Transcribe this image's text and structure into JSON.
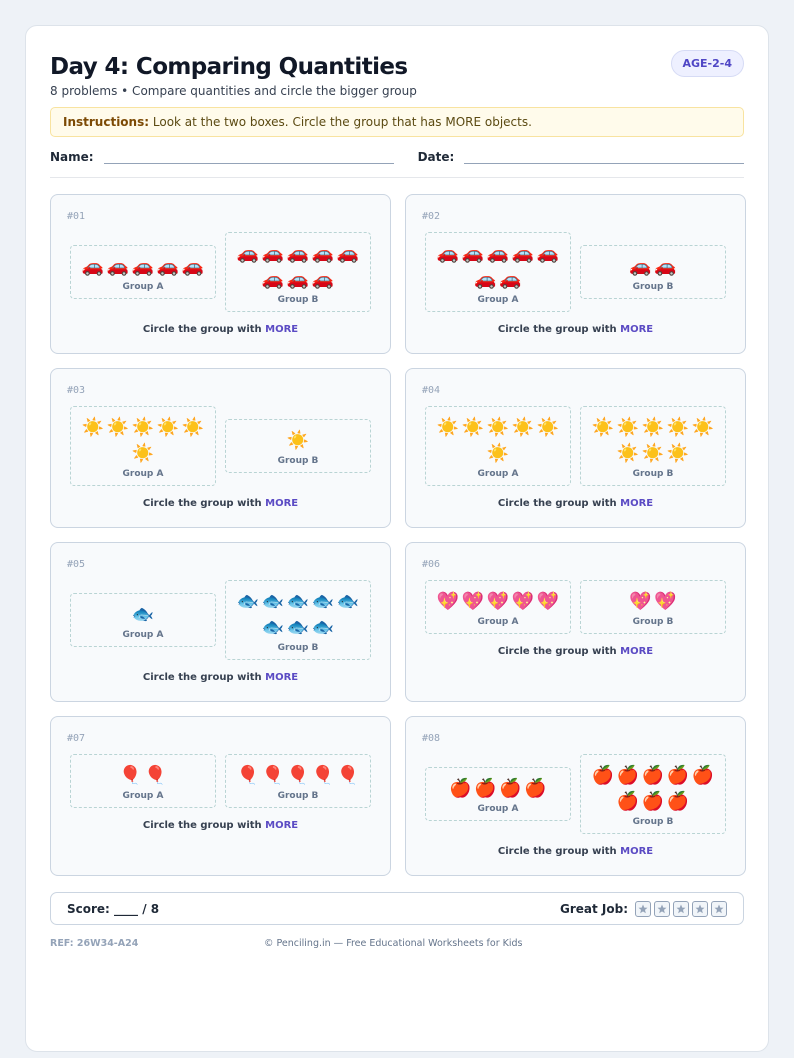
{
  "header": {
    "title": "Day 4: Comparing Quantities",
    "subtitle": "8 problems • Compare quantities and circle the bigger group",
    "badge": "AGE-2-4"
  },
  "instructions": {
    "label": "Instructions:",
    "text": "Look at the two boxes. Circle the group that has MORE objects."
  },
  "fields": {
    "name": "Name:",
    "date": "Date:"
  },
  "problems": [
    {
      "number": "#01",
      "groups": [
        {
          "items": [
            "🚗",
            "🚗",
            "🚗",
            "🚗",
            "🚗"
          ],
          "label": "Group A"
        },
        {
          "items": [
            "🚗",
            "🚗",
            "🚗",
            "🚗",
            "🚗",
            "🚗",
            "🚗",
            "🚗"
          ],
          "label": "Group B"
        }
      ],
      "prompt": "Circle the group with",
      "emphasis": "MORE"
    },
    {
      "number": "#02",
      "groups": [
        {
          "items": [
            "🚗",
            "🚗",
            "🚗",
            "🚗",
            "🚗",
            "🚗",
            "🚗"
          ],
          "label": "Group A"
        },
        {
          "items": [
            "🚗",
            "🚗"
          ],
          "label": "Group B"
        }
      ],
      "prompt": "Circle the group with",
      "emphasis": "MORE"
    },
    {
      "number": "#03",
      "groups": [
        {
          "items": [
            "☀️",
            "☀️",
            "☀️",
            "☀️",
            "☀️",
            "☀️"
          ],
          "label": "Group A"
        },
        {
          "items": [
            "☀️"
          ],
          "label": "Group B"
        }
      ],
      "prompt": "Circle the group with",
      "emphasis": "MORE"
    },
    {
      "number": "#04",
      "groups": [
        {
          "items": [
            "☀️",
            "☀️",
            "☀️",
            "☀️",
            "☀️",
            "☀️"
          ],
          "label": "Group A"
        },
        {
          "items": [
            "☀️",
            "☀️",
            "☀️",
            "☀️",
            "☀️",
            "☀️",
            "☀️",
            "☀️"
          ],
          "label": "Group B"
        }
      ],
      "prompt": "Circle the group with",
      "emphasis": "MORE"
    },
    {
      "number": "#05",
      "groups": [
        {
          "items": [
            "🐟"
          ],
          "label": "Group A"
        },
        {
          "items": [
            "🐟",
            "🐟",
            "🐟",
            "🐟",
            "🐟",
            "🐟",
            "🐟",
            "🐟"
          ],
          "label": "Group B"
        }
      ],
      "prompt": "Circle the group with",
      "emphasis": "MORE"
    },
    {
      "number": "#06",
      "groups": [
        {
          "items": [
            "💖",
            "💖",
            "💖",
            "💖",
            "💖"
          ],
          "label": "Group A"
        },
        {
          "items": [
            "💖",
            "💖"
          ],
          "label": "Group B"
        }
      ],
      "prompt": "Circle the group with",
      "emphasis": "MORE"
    },
    {
      "number": "#07",
      "groups": [
        {
          "items": [
            "🎈",
            "🎈"
          ],
          "label": "Group A"
        },
        {
          "items": [
            "🎈",
            "🎈",
            "🎈",
            "🎈",
            "🎈"
          ],
          "label": "Group B"
        }
      ],
      "prompt": "Circle the group with",
      "emphasis": "MORE"
    },
    {
      "number": "#08",
      "groups": [
        {
          "items": [
            "🍎",
            "🍎",
            "🍎",
            "🍎"
          ],
          "label": "Group A"
        },
        {
          "items": [
            "🍎",
            "🍎",
            "🍎",
            "🍎",
            "🍎",
            "🍎",
            "🍎",
            "🍎"
          ],
          "label": "Group B"
        }
      ],
      "prompt": "Circle the group with",
      "emphasis": "MORE"
    }
  ],
  "footer": {
    "score": "Score: ____ / 8",
    "great_job": "Great Job:",
    "ref": "REF: 26W34-A24",
    "copyright": "© Penciling.in — Free Educational Worksheets for Kids"
  }
}
